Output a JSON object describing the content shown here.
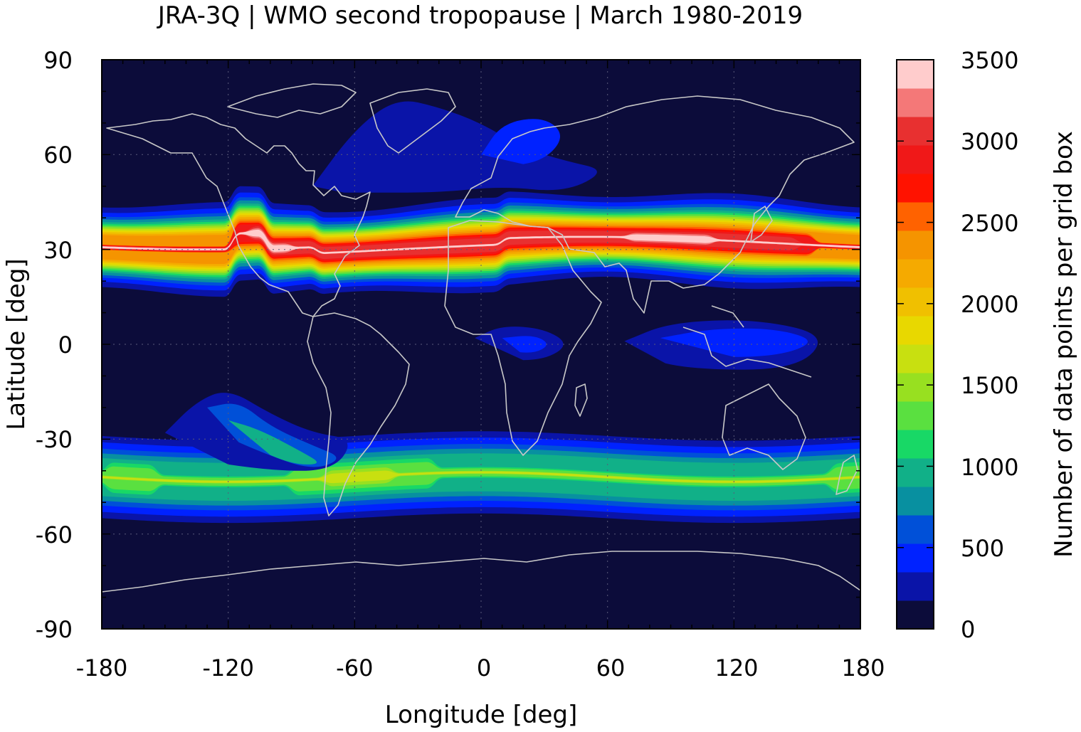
{
  "chart_data": {
    "type": "heatmap",
    "title": "JRA-3Q | WMO second tropopause | March 1980-2019",
    "xlabel": "Longitude [deg]",
    "ylabel": "Latitude [deg]",
    "colorbar_label": "Number of data points per grid box",
    "xlim": [
      -180,
      180
    ],
    "ylim": [
      -90,
      90
    ],
    "x_ticks": [
      -180,
      -120,
      -60,
      0,
      60,
      120,
      180
    ],
    "y_ticks": [
      90,
      60,
      30,
      0,
      -30,
      -60,
      -90
    ],
    "colorbar_range": [
      0,
      3500
    ],
    "colorbar_ticks": [
      0,
      500,
      1000,
      1500,
      2000,
      2500,
      3000,
      3500
    ],
    "colorbar_levels": [
      0,
      175,
      350,
      525,
      700,
      875,
      1050,
      1225,
      1400,
      1575,
      1750,
      1925,
      2100,
      2275,
      2450,
      2625,
      2800,
      2975,
      3150,
      3325,
      3500
    ],
    "colors": [
      "#0c0c3a",
      "#0a14a8",
      "#0022ff",
      "#0050d8",
      "#0890a0",
      "#11b088",
      "#18d866",
      "#5ae040",
      "#98e020",
      "#c8e010",
      "#e8d800",
      "#f0c000",
      "#f5aa00",
      "#f59400",
      "#ff6200",
      "#ff1200",
      "#f01818",
      "#e83030",
      "#f47878",
      "#ffcccc"
    ],
    "background_color": "#0c0c3a",
    "coastline_color": "#c8c8c8",
    "grid": "dotted at 30 deg intervals",
    "features": [
      {
        "name": "NH subtropical band",
        "lon_range": [
          -180,
          180
        ],
        "lat_center": 32,
        "peak_value": 3500
      },
      {
        "name": "SH midlatitude band",
        "lon_range": [
          -180,
          180
        ],
        "lat_center": -42,
        "peak_value": 1700
      },
      {
        "name": "equatorial Africa patch",
        "lon_range": [
          -3,
          40
        ],
        "lat_center": 0,
        "peak_value": 500
      },
      {
        "name": "maritime continent patch",
        "lon_range": [
          68,
          165
        ],
        "lat_center": 0,
        "peak_value": 500
      }
    ]
  }
}
